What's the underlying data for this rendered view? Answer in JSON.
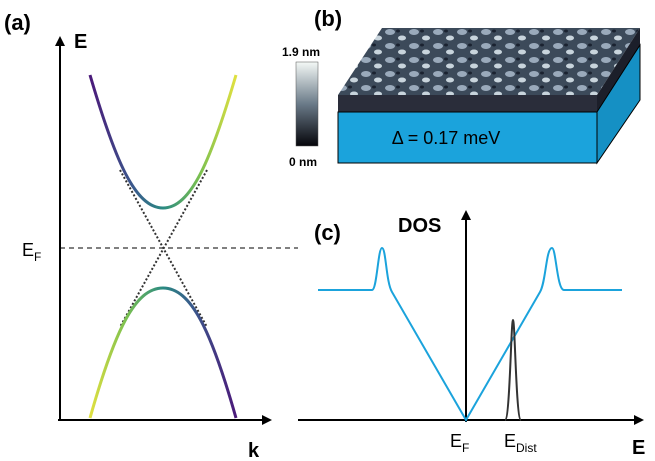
{
  "panel_a": {
    "label": "(a)",
    "y_axis": "E",
    "x_axis": "k",
    "fermi": {
      "main": "E",
      "sub": "F"
    }
  },
  "panel_b": {
    "label": "(b)",
    "colorbar_max": "1.9 nm",
    "colorbar_min": "0 nm",
    "gap": "Δ = 0.17 meV"
  },
  "panel_c": {
    "label": "(c)",
    "y_axis": "DOS",
    "x_axis": "E",
    "fermi": {
      "main": "E",
      "sub": "F"
    },
    "dist": {
      "main": "E",
      "sub": "Dist"
    }
  }
}
